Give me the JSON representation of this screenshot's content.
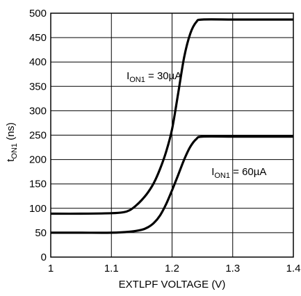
{
  "chart_data": {
    "type": "line",
    "xlabel": "EXTLPF VOLTAGE (V)",
    "ylabel": {
      "main": "t",
      "sub": "ON1",
      "suffix": " (ns)"
    },
    "xlim": [
      1,
      1.4
    ],
    "ylim": [
      0,
      500
    ],
    "xticks": [
      1,
      1.1,
      1.2,
      1.3,
      1.4
    ],
    "xtick_labels": [
      "1",
      "1.1",
      "1.2",
      "1.3",
      "1.4"
    ],
    "yticks": [
      0,
      50,
      100,
      150,
      200,
      250,
      300,
      350,
      400,
      450,
      500
    ],
    "ytick_labels": [
      "0",
      "50",
      "100",
      "150",
      "200",
      "250",
      "300",
      "350",
      "400",
      "450",
      "500"
    ],
    "grid": true,
    "series": [
      {
        "x": [
          1.0,
          1.05,
          1.1,
          1.12,
          1.13,
          1.14,
          1.15,
          1.16,
          1.17,
          1.18,
          1.19,
          1.2,
          1.21,
          1.22,
          1.23,
          1.24,
          1.25,
          1.3,
          1.35,
          1.4
        ],
        "y": [
          89,
          89,
          90,
          92,
          96,
          105,
          117,
          132,
          152,
          180,
          215,
          262,
          335,
          410,
          458,
          482,
          487,
          487,
          487,
          487
        ],
        "annotation": {
          "main": "I",
          "sub": "ON1",
          "suffix": " = 30µA",
          "at": [
            1.125,
            365
          ]
        }
      },
      {
        "x": [
          1.0,
          1.05,
          1.1,
          1.13,
          1.15,
          1.16,
          1.17,
          1.18,
          1.19,
          1.2,
          1.21,
          1.22,
          1.23,
          1.24,
          1.25,
          1.3,
          1.35,
          1.4
        ],
        "y": [
          50,
          50,
          50,
          52,
          56,
          61,
          70,
          85,
          108,
          137,
          168,
          200,
          226,
          242,
          247,
          247,
          247,
          247
        ],
        "annotation": {
          "main": "I",
          "sub": "ON1",
          "suffix": " = 60µA",
          "at": [
            1.265,
            168
          ]
        }
      }
    ]
  }
}
